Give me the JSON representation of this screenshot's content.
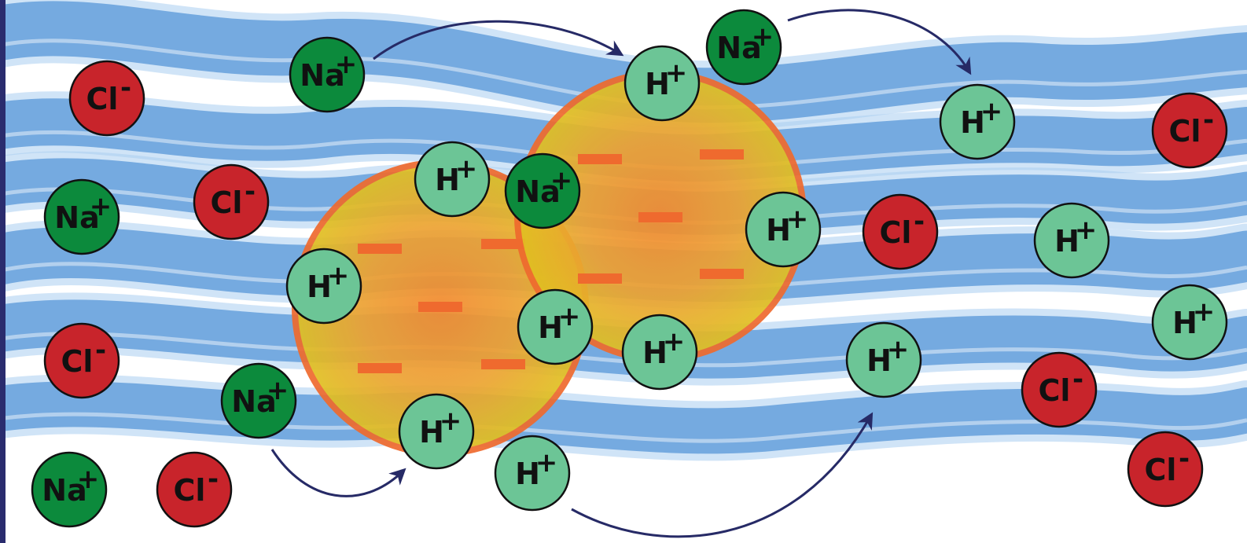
{
  "labels": {
    "sodium_ion": "Na",
    "hydrogen_ion": "H",
    "chloride_ion": "Cl",
    "positive_sign": "+",
    "negative_sign": "-"
  },
  "colors": {
    "water": "#4f92d6",
    "water_light": "#a9cdf0",
    "left_border": "#2a2c6e",
    "sodium_fill": "#0c8a3c",
    "hydrogen_fill": "#6cc596",
    "chloride_fill": "#c8242b",
    "particle_core": "#f28a2e",
    "particle_rim": "#e0c021",
    "particle_outline": "#ef6a2e",
    "negative_charge_mark": "#ef6a2e",
    "arrow": "#262a66"
  },
  "particles": [
    {
      "name": "left-resin-particle",
      "negative_charges": 6
    },
    {
      "name": "right-resin-particle",
      "negative_charges": 6
    }
  ],
  "ions": [
    {
      "type": "chloride_ion"
    },
    {
      "type": "sodium_ion"
    },
    {
      "type": "chloride_ion"
    },
    {
      "type": "sodium_ion"
    },
    {
      "type": "chloride_ion"
    },
    {
      "type": "sodium_ion"
    },
    {
      "type": "sodium_ion"
    },
    {
      "type": "chloride_ion"
    },
    {
      "type": "hydrogen_ion"
    },
    {
      "type": "hydrogen_ion"
    },
    {
      "type": "hydrogen_ion"
    },
    {
      "type": "sodium_ion"
    },
    {
      "type": "hydrogen_ion"
    },
    {
      "type": "hydrogen_ion"
    },
    {
      "type": "sodium_ion"
    },
    {
      "type": "hydrogen_ion"
    },
    {
      "type": "hydrogen_ion"
    },
    {
      "type": "hydrogen_ion"
    },
    {
      "type": "hydrogen_ion"
    },
    {
      "type": "chloride_ion"
    },
    {
      "type": "hydrogen_ion"
    },
    {
      "type": "hydrogen_ion"
    },
    {
      "type": "chloride_ion"
    },
    {
      "type": "hydrogen_ion"
    },
    {
      "type": "chloride_ion"
    },
    {
      "type": "chloride_ion"
    },
    {
      "type": "hydrogen_ion"
    }
  ],
  "exchange_arrows": [
    {
      "from": "sodium_ion",
      "to": "right-resin-particle"
    },
    {
      "from": "hydrogen_ion",
      "to": "solution"
    },
    {
      "from": "sodium_ion",
      "to": "left-resin-particle"
    },
    {
      "from": "hydrogen_ion",
      "to": "solution"
    }
  ]
}
